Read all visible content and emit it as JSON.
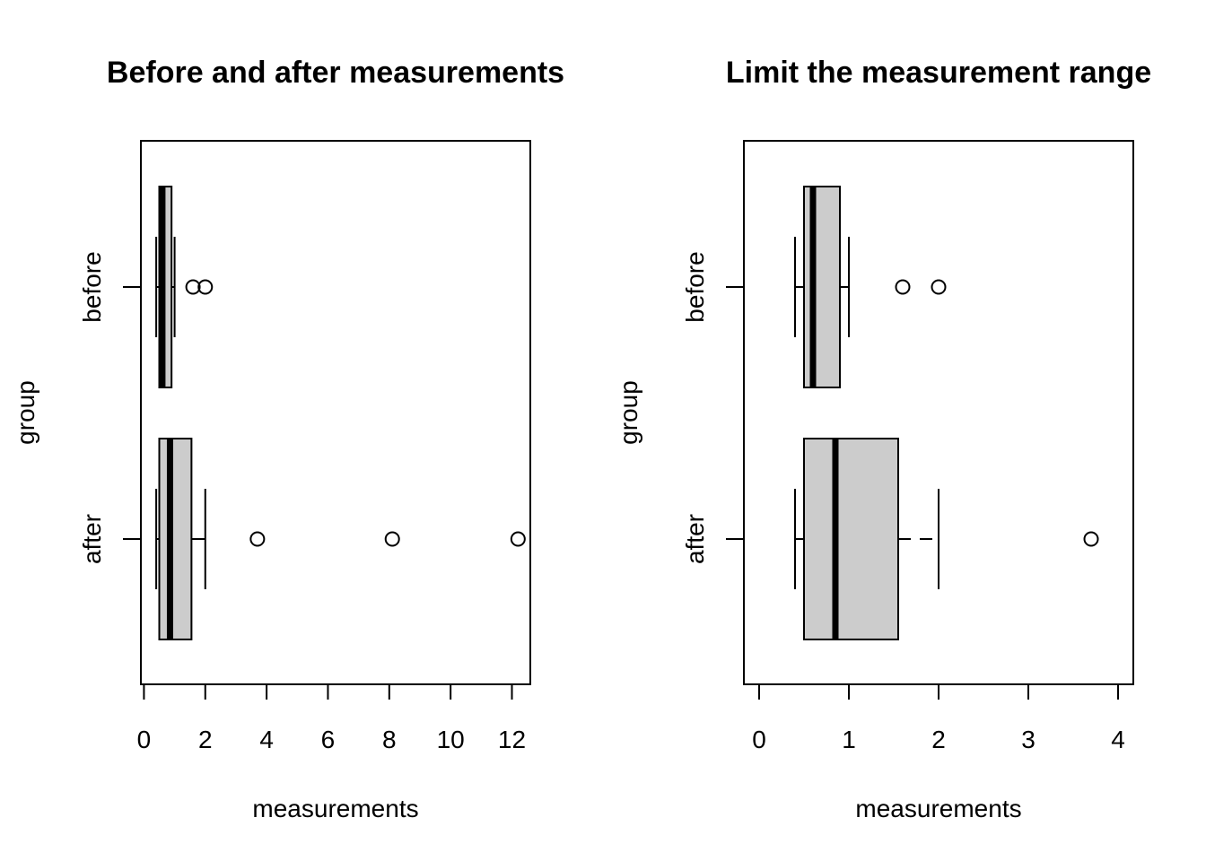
{
  "chart_data": [
    {
      "type": "boxplot",
      "title": "Before and after measurements",
      "xlabel": "measurements",
      "ylabel": "group",
      "orientation": "horizontal",
      "xlim": [
        -0.1,
        12.6
      ],
      "xticks": [
        0,
        2,
        4,
        6,
        8,
        10,
        12
      ],
      "box_fill": "#cccccc",
      "series": [
        {
          "name": "after",
          "min": 0.4,
          "q1": 0.5,
          "median": 0.85,
          "q3": 1.55,
          "max": 2.0,
          "outliers": [
            3.7,
            8.1,
            12.2
          ],
          "dashed_whisker": false
        },
        {
          "name": "before",
          "min": 0.4,
          "q1": 0.5,
          "median": 0.6,
          "q3": 0.9,
          "max": 1.0,
          "outliers": [
            1.6,
            2.0
          ],
          "dashed_whisker": false
        }
      ]
    },
    {
      "type": "boxplot",
      "title": "Limit the measurement range",
      "xlabel": "measurements",
      "ylabel": "group",
      "orientation": "horizontal",
      "xlim": [
        -0.17,
        4.17
      ],
      "xticks": [
        0,
        1,
        2,
        3,
        4
      ],
      "box_fill": "#cccccc",
      "series": [
        {
          "name": "after",
          "min": 0.4,
          "q1": 0.5,
          "median": 0.85,
          "q3": 1.55,
          "max": 2.0,
          "outliers": [
            3.7
          ],
          "dashed_whisker": true
        },
        {
          "name": "before",
          "min": 0.4,
          "q1": 0.5,
          "median": 0.6,
          "q3": 0.9,
          "max": 1.0,
          "outliers": [
            1.6,
            2.0
          ],
          "dashed_whisker": false
        }
      ]
    }
  ]
}
